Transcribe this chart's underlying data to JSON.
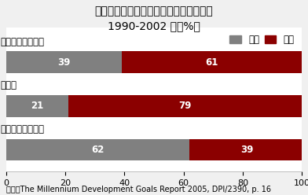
{
  "title": "職業地位別全雇用数に占める女性の割合\n1990-2002 年（%）",
  "categories": [
    "賃金・給与労働者",
    "雇用主",
    "無給の家族労働者"
  ],
  "female_values": [
    39,
    21,
    62
  ],
  "male_values": [
    61,
    79,
    39
  ],
  "female_color": "#808080",
  "male_color": "#8B0000",
  "female_label": "女性",
  "male_label": "男性",
  "xlim": [
    0,
    100
  ],
  "xticks": [
    0,
    20,
    40,
    60,
    80,
    100
  ],
  "footnote": "出典：The Millennium Development Goals Report 2005, DPI/2390, p. 16",
  "bar_height": 0.5,
  "title_fontsize": 10,
  "label_fontsize": 8.5,
  "tick_fontsize": 8,
  "value_fontsize": 8.5,
  "footnote_fontsize": 7,
  "bg_color": "#f0f0f0",
  "box_color": "#ffffff"
}
